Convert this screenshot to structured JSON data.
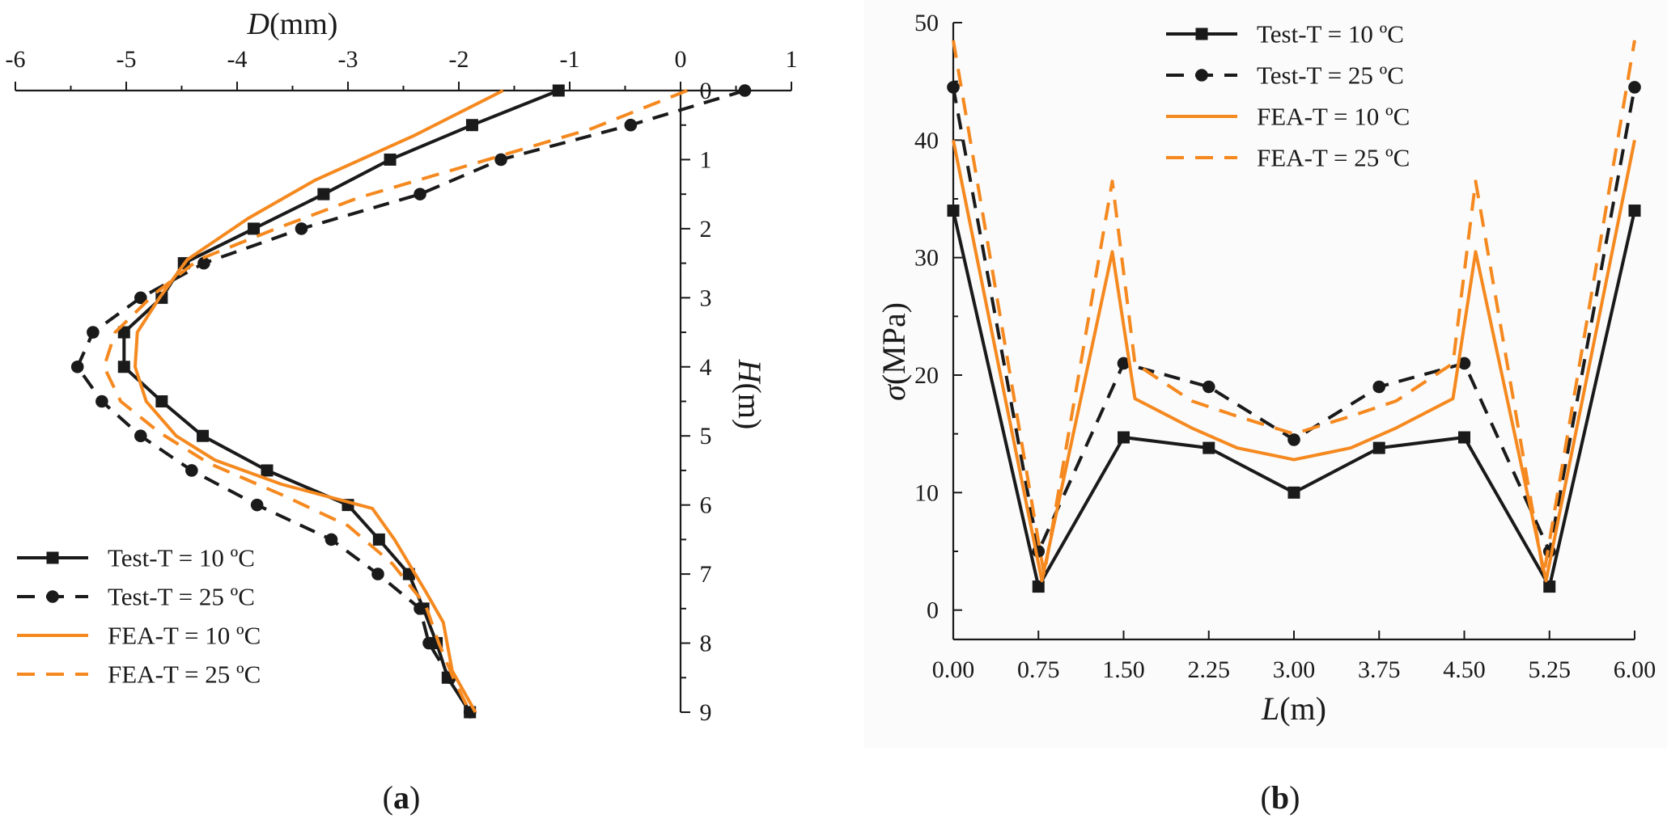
{
  "colors": {
    "test": "#1a1a1a",
    "fea": "#f5891f"
  },
  "chart_data": [
    {
      "type": "line",
      "panel_label": "(a)",
      "xlabel_italic": "D",
      "xlabel_unit": "(mm)",
      "ylabel_italic": "H",
      "ylabel_unit": "(m)",
      "xlim": [
        -6,
        1
      ],
      "ylim": [
        0,
        9
      ],
      "y_inverted": true,
      "x_ticks": [
        -6,
        -5,
        -4,
        -3,
        -2,
        -1,
        0,
        1
      ],
      "x_tick_labels": [
        "-6",
        "-5",
        "-4",
        "-3",
        "-2",
        "-1",
        "0",
        "1"
      ],
      "y_ticks": [
        0,
        1,
        2,
        3,
        4,
        5,
        6,
        7,
        8,
        9
      ],
      "y_tick_labels": [
        "0",
        "1",
        "2",
        "3",
        "4",
        "5",
        "6",
        "7",
        "8",
        "9"
      ],
      "legend_position": "bottom-left",
      "series": [
        {
          "name": "Test-T = 10 ºC",
          "style": "test-solid",
          "marker": "square",
          "x": [
            -1.1,
            -1.88,
            -2.62,
            -3.22,
            -3.85,
            -4.48,
            -4.68,
            -5.02,
            -5.02,
            -4.68,
            -4.31,
            -3.73,
            -3.0,
            -2.72,
            -2.45,
            -2.32,
            -2.2,
            -2.1,
            -1.9
          ],
          "y": [
            0,
            0.5,
            1.0,
            1.5,
            2.0,
            2.5,
            3.0,
            3.5,
            4.0,
            4.5,
            5.0,
            5.5,
            6.0,
            6.5,
            7.0,
            7.5,
            8.0,
            8.5,
            9.0
          ]
        },
        {
          "name": "Test-T = 25 ºC",
          "style": "test-dashed",
          "marker": "circle",
          "x": [
            0.58,
            -0.45,
            -1.62,
            -2.35,
            -3.42,
            -4.3,
            -4.87,
            -5.3,
            -5.44,
            -5.22,
            -4.87,
            -4.41,
            -3.82,
            -3.15,
            -2.73,
            -2.35,
            -2.27,
            -2.08,
            -1.9
          ],
          "y": [
            0,
            0.5,
            1.0,
            1.5,
            2.0,
            2.5,
            3.0,
            3.5,
            4.0,
            4.5,
            5.0,
            5.5,
            6.0,
            6.5,
            7.0,
            7.5,
            8.0,
            8.5,
            9.0
          ]
        },
        {
          "name": "FEA-T = 10 ºC",
          "style": "fea-solid",
          "marker": "none",
          "x": [
            -1.6,
            -2.4,
            -3.3,
            -3.9,
            -4.45,
            -4.7,
            -4.9,
            -4.92,
            -4.82,
            -4.55,
            -4.2,
            -3.6,
            -2.78,
            -2.58,
            -2.3,
            -2.14,
            -2.06,
            -1.85
          ],
          "y": [
            0,
            0.65,
            1.3,
            1.85,
            2.45,
            3.0,
            3.5,
            4.0,
            4.5,
            5.0,
            5.35,
            5.7,
            6.05,
            6.5,
            7.25,
            7.7,
            8.4,
            9.0
          ]
        },
        {
          "name": "FEA-T = 25 ºC",
          "style": "fea-dashed",
          "marker": "none",
          "x": [
            0.06,
            -0.8,
            -1.95,
            -2.9,
            -3.65,
            -4.35,
            -4.75,
            -5.1,
            -5.2,
            -5.05,
            -4.7,
            -4.25,
            -3.6,
            -3.0,
            -2.6,
            -2.3,
            -2.18,
            -2.05,
            -1.9
          ],
          "y": [
            0,
            0.55,
            1.1,
            1.55,
            2.0,
            2.45,
            2.95,
            3.5,
            4.0,
            4.5,
            4.95,
            5.4,
            5.85,
            6.3,
            6.85,
            7.45,
            8.0,
            8.5,
            9.0
          ]
        }
      ]
    },
    {
      "type": "line",
      "panel_label": "(b)",
      "xlabel_italic": "L",
      "xlabel_unit": "(m)",
      "ylabel_italic": "σ",
      "ylabel_unit": "(MPa)",
      "xlim": [
        0,
        6
      ],
      "ylim": [
        -2.5,
        50
      ],
      "x_ticks": [
        0,
        0.75,
        1.5,
        2.25,
        3.0,
        3.75,
        4.5,
        5.25,
        6.0
      ],
      "x_tick_labels": [
        "0.00",
        "0.75",
        "1.50",
        "2.25",
        "3.00",
        "3.75",
        "4.50",
        "5.25",
        "6.00"
      ],
      "y_ticks": [
        0,
        10,
        20,
        30,
        40,
        50
      ],
      "y_tick_labels": [
        "0",
        "10",
        "20",
        "30",
        "40",
        "50"
      ],
      "legend_position": "top-center",
      "series": [
        {
          "name": "Test-T = 10 ºC",
          "style": "test-solid",
          "marker": "square",
          "x": [
            0,
            0.75,
            1.5,
            2.25,
            3.0,
            3.75,
            4.5,
            5.25,
            6.0
          ],
          "y": [
            34,
            2,
            14.7,
            13.8,
            10,
            13.8,
            14.7,
            2,
            34
          ]
        },
        {
          "name": "Test-T = 25 ºC",
          "style": "test-dashed",
          "marker": "circle",
          "x": [
            0,
            0.75,
            1.5,
            2.25,
            3.0,
            3.75,
            4.5,
            5.25,
            6.0
          ],
          "y": [
            44.5,
            5,
            21,
            19,
            14.5,
            19,
            21,
            5,
            44.5
          ]
        },
        {
          "name": "FEA-T = 10 ºC",
          "style": "fea-solid",
          "marker": "none",
          "x": [
            0,
            0.78,
            1.4,
            1.6,
            2.1,
            2.5,
            3.0,
            3.5,
            3.9,
            4.4,
            4.6,
            5.22,
            6.0
          ],
          "y": [
            40,
            2.5,
            30.5,
            18,
            15.5,
            13.8,
            12.8,
            13.8,
            15.5,
            18,
            30.5,
            2.5,
            40
          ]
        },
        {
          "name": "FEA-T = 25 ºC",
          "style": "fea-dashed",
          "marker": "none",
          "x": [
            0,
            0.8,
            1.4,
            1.6,
            2.1,
            2.5,
            3.0,
            3.5,
            3.9,
            4.4,
            4.6,
            5.2,
            6.0
          ],
          "y": [
            48.5,
            3,
            36.5,
            21,
            17.8,
            16.5,
            15,
            16.5,
            17.8,
            21,
            36.5,
            3,
            48.5
          ]
        }
      ]
    }
  ]
}
